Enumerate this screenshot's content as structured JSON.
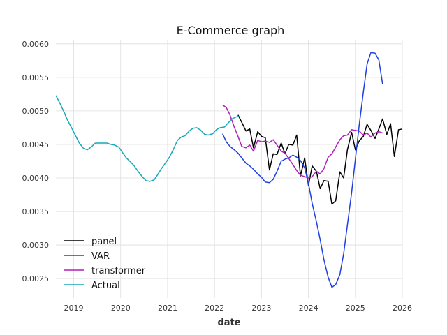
{
  "chart_data": {
    "type": "line",
    "title": "E-Commerce graph",
    "xlabel": "date",
    "ylabel": "",
    "xlim": [
      2018.62,
      2026.0
    ],
    "ylim": [
      0.00221,
      0.00605
    ],
    "x_ticks": [
      2019,
      2020,
      2021,
      2022,
      2023,
      2024,
      2025,
      2026
    ],
    "x_tick_labels": [
      "2019",
      "2020",
      "2021",
      "2022",
      "2023",
      "2024",
      "2025",
      "2026"
    ],
    "y_ticks": [
      0.0025,
      0.003,
      0.0035,
      0.004,
      0.0045,
      0.005,
      0.0055,
      0.006
    ],
    "y_tick_labels": [
      "0.0025",
      "0.0030",
      "0.0035",
      "0.0040",
      "0.0045",
      "0.0050",
      "0.0055",
      "0.0060"
    ],
    "grid": true,
    "legend_position": "lower-left",
    "series": [
      {
        "name": "panel",
        "color": "#000000",
        "x": [
          2022.5,
          2022.58,
          2022.67,
          2022.75,
          2022.83,
          2022.92,
          2023.0,
          2023.08,
          2023.17,
          2023.25,
          2023.33,
          2023.42,
          2023.5,
          2023.58,
          2023.67,
          2023.75,
          2023.83,
          2023.92,
          2024.0,
          2024.08,
          2024.17,
          2024.25,
          2024.33,
          2024.42,
          2024.5,
          2024.58,
          2024.67,
          2024.75,
          2024.83,
          2024.92,
          2025.0,
          2025.08,
          2025.17,
          2025.25,
          2025.33,
          2025.42,
          2025.5,
          2025.58,
          2025.67,
          2025.75,
          2025.83,
          2025.92,
          2026.0
        ],
        "y": [
          0.00494,
          0.00483,
          0.0047,
          0.00473,
          0.00445,
          0.00469,
          0.00462,
          0.0046,
          0.00412,
          0.00436,
          0.00435,
          0.00452,
          0.00436,
          0.0045,
          0.00449,
          0.00464,
          0.00403,
          0.0043,
          0.00389,
          0.00418,
          0.0041,
          0.00384,
          0.00396,
          0.00395,
          0.00361,
          0.00366,
          0.00409,
          0.004,
          0.00442,
          0.00468,
          0.00442,
          0.00455,
          0.00462,
          0.0048,
          0.00471,
          0.00459,
          0.00473,
          0.00488,
          0.00465,
          0.00481,
          0.00432,
          0.00472,
          0.00473
        ]
      },
      {
        "name": "VAR",
        "color": "#1f3fe0",
        "x": [
          2022.17,
          2022.25,
          2022.33,
          2022.42,
          2022.5,
          2022.58,
          2022.67,
          2022.75,
          2022.83,
          2022.92,
          2023.0,
          2023.08,
          2023.17,
          2023.25,
          2023.33,
          2023.42,
          2023.5,
          2023.58,
          2023.67,
          2023.75,
          2023.83,
          2023.92,
          2024.0,
          2024.08,
          2024.17,
          2024.25,
          2024.33,
          2024.42,
          2024.5,
          2024.58,
          2024.67,
          2024.75,
          2024.83,
          2024.92,
          2025.0,
          2025.08,
          2025.17,
          2025.25,
          2025.33,
          2025.42,
          2025.5,
          2025.58
        ],
        "y": [
          0.00466,
          0.00454,
          0.00447,
          0.00442,
          0.00437,
          0.0043,
          0.00422,
          0.00418,
          0.00413,
          0.00406,
          0.00401,
          0.00394,
          0.00393,
          0.00398,
          0.0041,
          0.00425,
          0.00428,
          0.0043,
          0.00434,
          0.00431,
          0.00426,
          0.00415,
          0.00392,
          0.00362,
          0.00335,
          0.00308,
          0.00278,
          0.00252,
          0.00237,
          0.00241,
          0.00256,
          0.00287,
          0.0033,
          0.00378,
          0.00428,
          0.00478,
          0.00528,
          0.0057,
          0.00587,
          0.00586,
          0.00576,
          0.0054
        ]
      },
      {
        "name": "transformer",
        "color": "#b01fb8",
        "x": [
          2022.17,
          2022.25,
          2022.33,
          2022.42,
          2022.5,
          2022.58,
          2022.67,
          2022.75,
          2022.83,
          2022.92,
          2023.0,
          2023.08,
          2023.17,
          2023.25,
          2023.33,
          2023.42,
          2023.5,
          2023.58,
          2023.67,
          2023.75,
          2023.83,
          2023.92,
          2024.0,
          2024.08,
          2024.17,
          2024.25,
          2024.33,
          2024.42,
          2024.5,
          2024.58,
          2024.67,
          2024.75,
          2024.83,
          2024.92,
          2025.0,
          2025.08,
          2025.17,
          2025.25,
          2025.33,
          2025.42,
          2025.5,
          2025.58
        ],
        "y": [
          0.00509,
          0.00505,
          0.00494,
          0.00476,
          0.00462,
          0.00447,
          0.00445,
          0.00449,
          0.0044,
          0.00456,
          0.00454,
          0.00455,
          0.00453,
          0.00457,
          0.00449,
          0.0044,
          0.00437,
          0.00429,
          0.0042,
          0.00411,
          0.00404,
          0.00402,
          0.004,
          0.00402,
          0.0041,
          0.00406,
          0.00414,
          0.00431,
          0.00436,
          0.00446,
          0.00457,
          0.00463,
          0.00464,
          0.00472,
          0.00471,
          0.0047,
          0.00464,
          0.00467,
          0.00461,
          0.00467,
          0.00469,
          0.00467
        ]
      },
      {
        "name": "Actual",
        "color": "#17a8b8",
        "x": [
          2018.62,
          2018.71,
          2018.79,
          2018.87,
          2018.96,
          2019.04,
          2019.12,
          2019.21,
          2019.29,
          2019.37,
          2019.46,
          2019.54,
          2019.62,
          2019.71,
          2019.79,
          2019.87,
          2019.96,
          2020.04,
          2020.12,
          2020.21,
          2020.29,
          2020.37,
          2020.46,
          2020.54,
          2020.62,
          2020.71,
          2020.79,
          2020.87,
          2020.96,
          2021.04,
          2021.12,
          2021.21,
          2021.29,
          2021.37,
          2021.46,
          2021.54,
          2021.62,
          2021.71,
          2021.79,
          2021.87,
          2021.96,
          2022.04,
          2022.12,
          2022.21,
          2022.29,
          2022.37,
          2022.46,
          2022.54
        ],
        "y": [
          0.00523,
          0.00511,
          0.00499,
          0.00486,
          0.00474,
          0.00463,
          0.00452,
          0.00444,
          0.00442,
          0.00446,
          0.00452,
          0.00452,
          0.00452,
          0.00452,
          0.0045,
          0.00449,
          0.00446,
          0.00438,
          0.0043,
          0.00424,
          0.00418,
          0.0041,
          0.00402,
          0.00396,
          0.00395,
          0.00397,
          0.00405,
          0.00414,
          0.00423,
          0.00431,
          0.00442,
          0.00456,
          0.00461,
          0.00463,
          0.0047,
          0.00474,
          0.00475,
          0.00471,
          0.00465,
          0.00464,
          0.00466,
          0.00472,
          0.00475,
          0.00476,
          0.00482,
          0.00488,
          0.00491,
          0.00492
        ]
      }
    ]
  }
}
